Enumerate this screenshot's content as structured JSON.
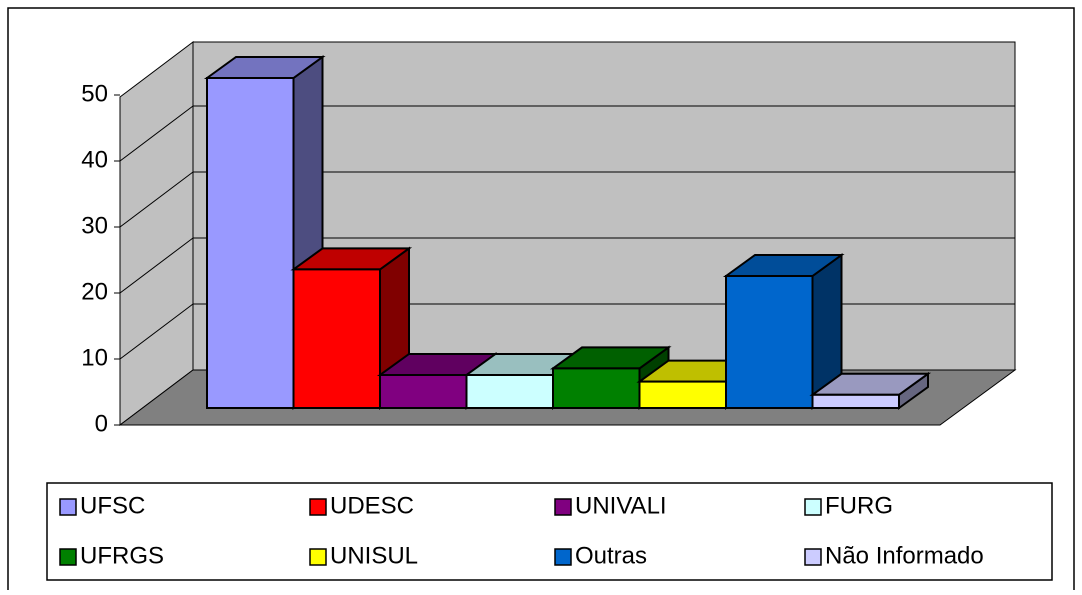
{
  "chart_data": {
    "type": "bar3d",
    "categories": [
      "UFSC",
      "UDESC",
      "UNIVALI",
      "FURG",
      "UFRGS",
      "UNISUL",
      "Outras",
      "Não Informado"
    ],
    "values": [
      50,
      21,
      5,
      5,
      6,
      4,
      20,
      2
    ],
    "colors": [
      "#9999ff",
      "#ff0000",
      "#800080",
      "#ccffff",
      "#008000",
      "#ffff00",
      "#0066cc",
      "#ccccff"
    ],
    "ylim": [
      0,
      50
    ],
    "yticks": [
      0,
      10,
      20,
      30,
      40,
      50
    ],
    "grid": true,
    "legend": "bottom"
  }
}
